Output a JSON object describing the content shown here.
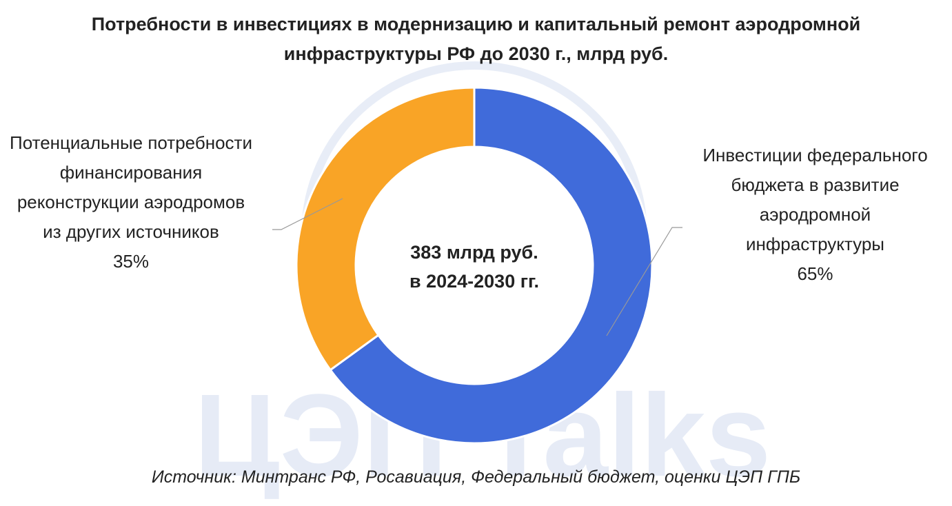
{
  "chart_data": {
    "type": "donut",
    "title": "Потребности в инвестициях в модернизацию и капитальный ремонт аэродромной инфраструктуры РФ до 2030 г., млрд руб.",
    "categories": [
      "Инвестиции федерального бюджета в развитие аэродромной инфраструктуры",
      "Потенциальные потребности финансирования реконструкции аэродромов из других источников"
    ],
    "values": [
      65,
      35
    ],
    "value_labels": [
      "65%",
      "35%"
    ],
    "colors": [
      "#3a66d9",
      "#f9a11f"
    ],
    "center_text": [
      "383 млрд руб.",
      "в 2024-2030 гг."
    ],
    "source": "Источник: Минтранс РФ, Росавиация, Федеральный бюджет, оценки ЦЭП ГПБ",
    "watermark": "ЦЭП Talks"
  }
}
